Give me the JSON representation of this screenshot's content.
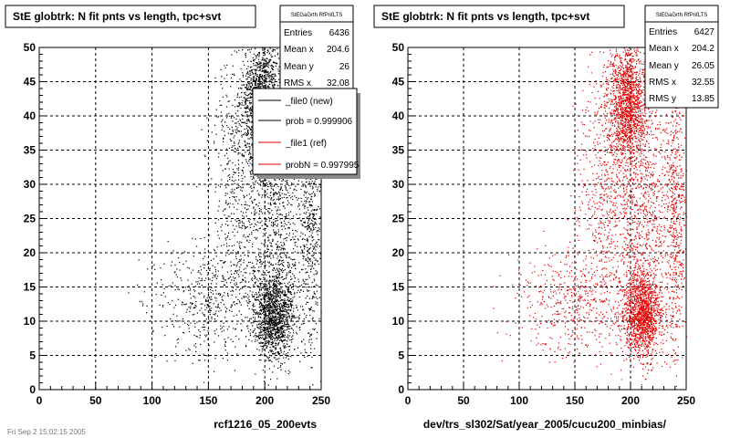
{
  "colors": {
    "new": "#000000",
    "ref": "#e00000",
    "grid": "#000000"
  },
  "panels": [
    {
      "title": "StE globtrk: N fit pnts vs length, tpc+svt",
      "xlabel": "rcf1216_05_200evts",
      "stats": {
        "header": "StEGaGrth RfPnfLTS",
        "rows": [
          {
            "label": "Entries",
            "value": "6436"
          },
          {
            "label": "Mean x",
            "value": "204.6"
          },
          {
            "label": "Mean y",
            "value": "26"
          },
          {
            "label": "RMS x",
            "value": "32.08"
          }
        ]
      },
      "legend": [
        {
          "label": "_file0 (new)",
          "color": "#000000"
        },
        {
          "label": "prob = 0.999906",
          "color": "#000000"
        },
        {
          "label": "_file1 (ref)",
          "color": "#e00000"
        },
        {
          "label": "probN = 0.997995",
          "color": "#e00000"
        }
      ]
    },
    {
      "title": "StE globtrk: N fit pnts vs length, tpc+svt",
      "xlabel": "dev/trs_sl302/Sat/year_2005/cucu200_minbias/",
      "stats": {
        "header": "StEGaGrth RfPnfLTS",
        "rows": [
          {
            "label": "Entries",
            "value": "6427"
          },
          {
            "label": "Mean x",
            "value": "204.2"
          },
          {
            "label": "Mean y",
            "value": "26.05"
          },
          {
            "label": "RMS x",
            "value": "32.55"
          },
          {
            "label": "RMS y",
            "value": "13.85"
          }
        ]
      }
    }
  ],
  "footer": "Fri Sep 2 15:02:15 2005",
  "chart_data": [
    {
      "type": "scatter",
      "title": "StE globtrk: N fit pnts vs length, tpc+svt",
      "xlabel": "rcf1216_05_200evts",
      "ylabel": "",
      "xlim": [
        0,
        250
      ],
      "ylim": [
        0,
        50
      ],
      "xticks": [
        0,
        50,
        100,
        150,
        200,
        250
      ],
      "yticks": [
        0,
        5,
        10,
        15,
        20,
        25,
        30,
        35,
        40,
        45,
        50
      ],
      "grid": true,
      "entries": 6436,
      "mean_x": 204.6,
      "mean_y": 26,
      "rms_x": 32.08,
      "color": "#000000",
      "clusters": [
        {
          "n": 1500,
          "cx": 197,
          "cy": 42,
          "sx": 9,
          "sy": 4.5
        },
        {
          "n": 1400,
          "cx": 208,
          "cy": 11,
          "sx": 9,
          "sy": 3.2
        },
        {
          "n": 900,
          "cx": 210,
          "cy": 27,
          "sx": 14,
          "sy": 9
        },
        {
          "n": 550,
          "cx": 240,
          "cy": 25,
          "sx": 5,
          "sy": 11
        },
        {
          "n": 500,
          "cx": 150,
          "cy": 13,
          "sx": 26,
          "sy": 4
        },
        {
          "n": 500,
          "cx": 175,
          "cy": 30,
          "sx": 12,
          "sy": 10
        }
      ]
    },
    {
      "type": "scatter",
      "title": "StE globtrk: N fit pnts vs length, tpc+svt",
      "xlabel": "dev/trs_sl302/Sat/year_2005/cucu200_minbias/",
      "ylabel": "",
      "xlim": [
        0,
        250
      ],
      "ylim": [
        0,
        50
      ],
      "xticks": [
        0,
        50,
        100,
        150,
        200,
        250
      ],
      "yticks": [
        0,
        5,
        10,
        15,
        20,
        25,
        30,
        35,
        40,
        45,
        50
      ],
      "grid": true,
      "entries": 6427,
      "mean_x": 204.2,
      "mean_y": 26.05,
      "rms_x": 32.55,
      "rms_y": 13.85,
      "color": "#e00000",
      "clusters": [
        {
          "n": 1500,
          "cx": 197,
          "cy": 42,
          "sx": 9,
          "sy": 4.5
        },
        {
          "n": 1400,
          "cx": 210,
          "cy": 11,
          "sx": 9,
          "sy": 3.2
        },
        {
          "n": 900,
          "cx": 210,
          "cy": 27,
          "sx": 14,
          "sy": 9
        },
        {
          "n": 550,
          "cx": 240,
          "cy": 25,
          "sx": 5,
          "sy": 11
        },
        {
          "n": 500,
          "cx": 150,
          "cy": 13,
          "sx": 26,
          "sy": 4
        },
        {
          "n": 500,
          "cx": 175,
          "cy": 30,
          "sx": 12,
          "sy": 10
        }
      ]
    }
  ]
}
